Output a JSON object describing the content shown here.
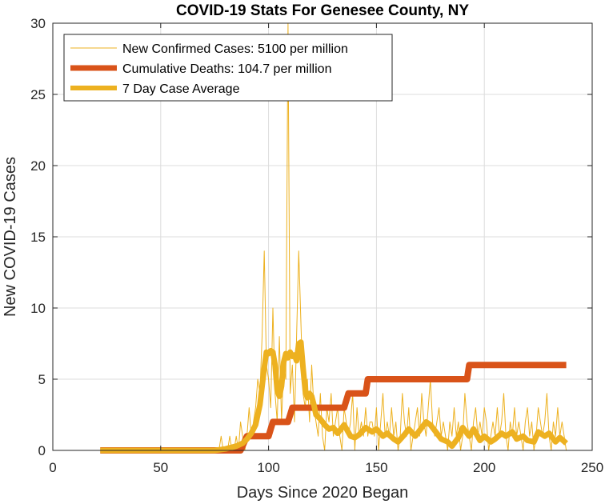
{
  "chart_data": {
    "type": "line",
    "title": "COVID-19 Stats For Genesee County, NY",
    "xlabel": "Days Since 2020 Began",
    "ylabel": "New COVID-19 Cases",
    "xlim": [
      0,
      250
    ],
    "ylim": [
      0,
      30
    ],
    "xticks": [
      0,
      50,
      100,
      150,
      200,
      250
    ],
    "yticks": [
      0,
      5,
      10,
      15,
      20,
      25,
      30
    ],
    "grid": true,
    "legend_position": "top-left",
    "series": [
      {
        "name": "New Confirmed Cases: 5100 per million",
        "color": "#EDB120",
        "style": "thin",
        "x": [
          22,
          30,
          40,
          50,
          60,
          70,
          77,
          78,
          79,
          80,
          81,
          82,
          83,
          84,
          85,
          86,
          87,
          88,
          89,
          90,
          91,
          92,
          93,
          94,
          95,
          96,
          97,
          98,
          99,
          100,
          101,
          102,
          103,
          104,
          105,
          106,
          107,
          108,
          109,
          110,
          111,
          112,
          113,
          114,
          115,
          116,
          117,
          118,
          119,
          120,
          121,
          122,
          123,
          124,
          125,
          126,
          127,
          128,
          129,
          130,
          131,
          132,
          133,
          134,
          135,
          136,
          137,
          138,
          139,
          140,
          141,
          142,
          143,
          144,
          145,
          146,
          147,
          148,
          149,
          150,
          151,
          152,
          153,
          154,
          155,
          156,
          157,
          158,
          159,
          160,
          161,
          162,
          163,
          164,
          165,
          166,
          167,
          168,
          169,
          170,
          171,
          172,
          173,
          174,
          175,
          176,
          177,
          178,
          179,
          180,
          181,
          182,
          183,
          184,
          185,
          186,
          187,
          188,
          189,
          190,
          191,
          192,
          193,
          194,
          195,
          196,
          197,
          198,
          199,
          200,
          201,
          202,
          203,
          204,
          205,
          206,
          207,
          208,
          209,
          210,
          211,
          212,
          213,
          214,
          215,
          216,
          217,
          218,
          219,
          220,
          221,
          222,
          223,
          224,
          225,
          226,
          227,
          228,
          229,
          230,
          231,
          232,
          233,
          234,
          235,
          236,
          237,
          238
        ],
        "y": [
          0,
          0,
          0,
          0,
          0,
          0,
          0,
          1,
          0,
          0,
          0,
          1,
          0,
          0,
          1,
          0,
          2,
          1,
          0,
          1,
          3,
          1,
          2,
          3,
          5,
          4,
          8,
          14,
          6,
          5,
          3,
          10,
          4,
          2,
          8,
          2,
          6,
          5,
          30,
          4,
          6,
          2,
          8,
          14,
          9,
          4,
          3,
          5,
          2,
          6,
          3,
          2,
          1,
          4,
          1,
          0,
          3,
          2,
          4,
          1,
          2,
          3,
          1,
          0,
          3,
          2,
          1,
          2,
          4,
          0,
          3,
          1,
          2,
          1,
          3,
          1,
          2,
          2,
          1,
          3,
          0,
          2,
          4,
          1,
          2,
          1,
          3,
          1,
          2,
          0,
          1,
          4,
          2,
          1,
          3,
          0,
          1,
          2,
          3,
          1,
          4,
          2,
          1,
          3,
          5,
          2,
          1,
          2,
          3,
          1,
          2,
          1,
          0,
          2,
          1,
          3,
          1,
          2,
          0,
          1,
          4,
          2,
          1,
          0,
          2,
          3,
          1,
          2,
          1,
          3,
          2,
          0,
          1,
          2,
          1,
          3,
          1,
          2,
          4,
          1,
          0,
          2,
          1,
          3,
          1,
          2,
          1,
          0,
          2,
          3,
          1,
          2,
          0,
          1,
          3,
          2,
          1,
          2,
          4,
          1,
          0,
          2,
          1,
          3,
          1,
          2,
          1,
          0
        ]
      },
      {
        "name": "Cumulative Deaths: 104.7 per million",
        "color": "#D95319",
        "style": "thick",
        "x": [
          22,
          87,
          90,
          100,
          102,
          109,
          111,
          125,
          126,
          135,
          137,
          145,
          146,
          192,
          193,
          238
        ],
        "y": [
          0,
          0,
          1,
          1,
          2,
          2,
          3,
          3,
          3,
          3,
          4,
          4,
          5,
          5,
          6,
          6
        ]
      },
      {
        "name": "7 Day Case Average",
        "color": "#EDB120",
        "style": "medium",
        "x": [
          22,
          40,
          60,
          75,
          80,
          85,
          88,
          90,
          92,
          94,
          96,
          98,
          99,
          100,
          101,
          102,
          103,
          104,
          105,
          106,
          107,
          108,
          109,
          110,
          111,
          112,
          113,
          114,
          115,
          116,
          117,
          118,
          119,
          120,
          121,
          122,
          124,
          126,
          128,
          130,
          132,
          135,
          138,
          140,
          142,
          145,
          148,
          150,
          153,
          155,
          158,
          160,
          163,
          165,
          168,
          170,
          173,
          175,
          178,
          180,
          183,
          185,
          188,
          190,
          193,
          195,
          198,
          200,
          203,
          205,
          208,
          210,
          213,
          215,
          218,
          220,
          223,
          225,
          228,
          230,
          233,
          235,
          238
        ],
        "y": [
          0,
          0,
          0,
          0,
          0.1,
          0.3,
          0.5,
          0.8,
          1.2,
          1.8,
          3.2,
          5.8,
          6.9,
          6.8,
          7.0,
          6.9,
          6.0,
          4.2,
          3.8,
          4.5,
          6.2,
          6.8,
          6.5,
          6.9,
          6.6,
          6.7,
          6.3,
          7.5,
          7.6,
          5.8,
          4.2,
          3.7,
          4.0,
          3.8,
          3.2,
          2.5,
          2.2,
          1.8,
          1.5,
          1.6,
          1.2,
          1.8,
          1.0,
          0.9,
          1.1,
          1.6,
          1.3,
          1.5,
          1.0,
          1.2,
          0.8,
          0.6,
          1.1,
          1.5,
          1.0,
          1.4,
          2.0,
          1.8,
          1.2,
          0.8,
          0.6,
          0.3,
          0.9,
          1.6,
          1.0,
          1.5,
          0.7,
          1.0,
          0.6,
          0.8,
          1.2,
          1.0,
          1.3,
          0.8,
          1.0,
          0.7,
          0.6,
          1.3,
          1.0,
          1.2,
          0.6,
          0.9,
          0.5
        ]
      }
    ]
  }
}
